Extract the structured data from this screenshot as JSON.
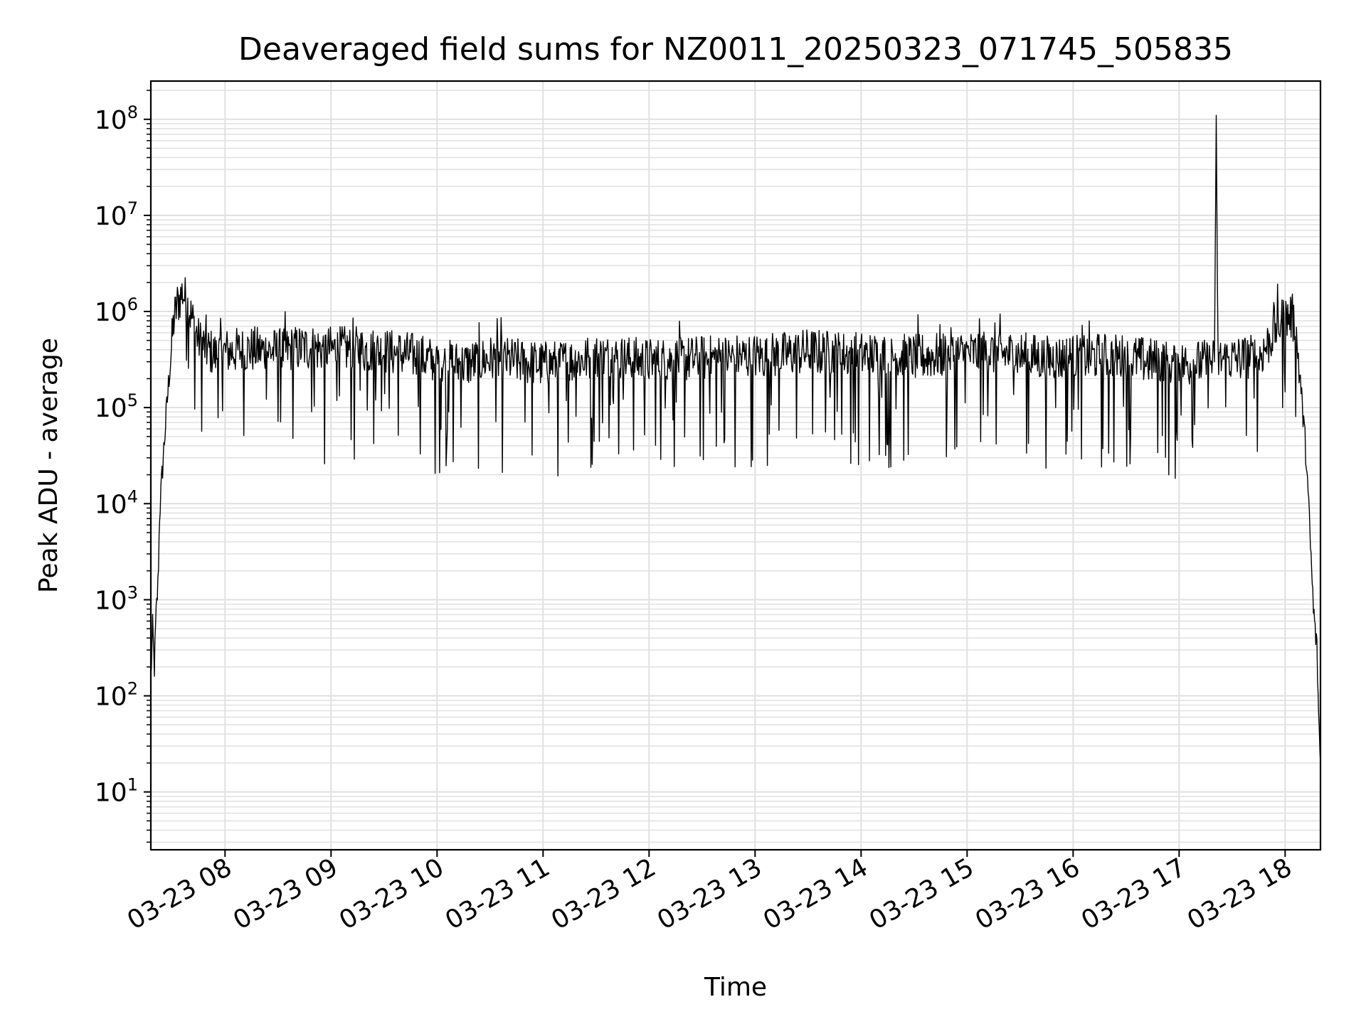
{
  "chart_data": {
    "type": "line",
    "title": "Deaveraged field sums for NZ0011_20250323_071745_505835",
    "xlabel": "Time",
    "ylabel": "Peak ADU - average",
    "yscale": "log",
    "ylim": [
      2.5,
      250000000
    ],
    "xlim": [
      "03-23 07:18",
      "03-23 18:20"
    ],
    "grid": "major and minor",
    "line_color": "#000000",
    "grid_color": "#e0e0e0",
    "x_ticks": [
      {
        "value": "03-23 08:00",
        "label": "03-23 08"
      },
      {
        "value": "03-23 09:00",
        "label": "03-23 09"
      },
      {
        "value": "03-23 10:00",
        "label": "03-23 10"
      },
      {
        "value": "03-23 11:00",
        "label": "03-23 11"
      },
      {
        "value": "03-23 12:00",
        "label": "03-23 12"
      },
      {
        "value": "03-23 13:00",
        "label": "03-23 13"
      },
      {
        "value": "03-23 14:00",
        "label": "03-23 14"
      },
      {
        "value": "03-23 15:00",
        "label": "03-23 15"
      },
      {
        "value": "03-23 16:00",
        "label": "03-23 16"
      },
      {
        "value": "03-23 17:00",
        "label": "03-23 17"
      },
      {
        "value": "03-23 18:00",
        "label": "03-23 18"
      }
    ],
    "y_ticks": [
      {
        "value": 10,
        "base": "10",
        "exp": "1"
      },
      {
        "value": 100,
        "base": "10",
        "exp": "2"
      },
      {
        "value": 1000,
        "base": "10",
        "exp": "3"
      },
      {
        "value": 10000,
        "base": "10",
        "exp": "4"
      },
      {
        "value": 100000,
        "base": "10",
        "exp": "5"
      },
      {
        "value": 1000000,
        "base": "10",
        "exp": "6"
      },
      {
        "value": 10000000,
        "base": "10",
        "exp": "7"
      },
      {
        "value": 100000000,
        "base": "10",
        "exp": "8"
      }
    ],
    "series": [
      {
        "x": [
          "03-23 07:18",
          "03-23 07:19",
          "03-23 07:20",
          "03-23 07:21",
          "03-23 07:22",
          "03-23 07:23",
          "03-23 07:25",
          "03-23 07:27",
          "03-23 07:29",
          "03-23 07:31",
          "03-23 07:33",
          "03-23 07:36",
          "03-23 07:40",
          "03-23 07:45",
          "03-23 07:50",
          "03-23 07:55",
          "03-23 08:00",
          "03-23 08:15",
          "03-23 08:30",
          "03-23 08:45",
          "03-23 09:00",
          "03-23 09:15",
          "03-23 09:30",
          "03-23 09:45",
          "03-23 10:00",
          "03-23 10:15",
          "03-23 10:30",
          "03-23 10:45",
          "03-23 11:00",
          "03-23 11:15",
          "03-23 11:30",
          "03-23 11:45",
          "03-23 12:00",
          "03-23 12:15",
          "03-23 12:30",
          "03-23 12:45",
          "03-23 13:00",
          "03-23 13:15",
          "03-23 13:30",
          "03-23 13:45",
          "03-23 14:00",
          "03-23 14:15",
          "03-23 14:30",
          "03-23 14:45",
          "03-23 15:00",
          "03-23 15:15",
          "03-23 15:30",
          "03-23 15:45",
          "03-23 16:00",
          "03-23 16:15",
          "03-23 16:30",
          "03-23 16:45",
          "03-23 17:00",
          "03-23 17:15",
          "03-23 17:20",
          "03-23 17:21",
          "03-23 17:22",
          "03-23 17:30",
          "03-23 17:45",
          "03-23 17:50",
          "03-23 17:55",
          "03-23 18:00",
          "03-23 18:03",
          "03-23 18:06",
          "03-23 18:09",
          "03-23 18:12",
          "03-23 18:14",
          "03-23 18:16",
          "03-23 18:18",
          "03-23 18:19",
          "03-23 18:20"
        ],
        "y": [
          150,
          500,
          200,
          700,
          1400,
          8000,
          30000,
          100000,
          300000,
          800000,
          1200000,
          1600000,
          1000000,
          500000,
          400000,
          350000,
          380000,
          400000,
          380000,
          420000,
          400000,
          400000,
          380000,
          350000,
          300000,
          280000,
          320000,
          300000,
          280000,
          300000,
          330000,
          320000,
          300000,
          310000,
          320000,
          330000,
          340000,
          350000,
          380000,
          360000,
          350000,
          340000,
          330000,
          350000,
          360000,
          370000,
          350000,
          320000,
          330000,
          340000,
          330000,
          300000,
          280000,
          290000,
          300000,
          110000000,
          310000,
          320000,
          330000,
          450000,
          700000,
          850000,
          900000,
          700000,
          150000,
          30000,
          5000,
          800,
          300,
          60,
          20
        ]
      }
    ]
  }
}
